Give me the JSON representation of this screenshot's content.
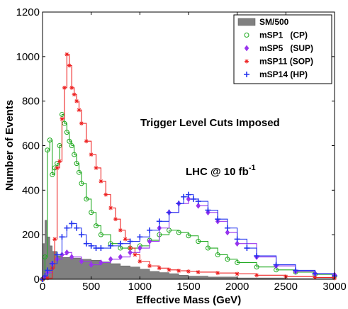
{
  "chart_data": {
    "type": "line",
    "title": "",
    "xlabel": "Effective Mass (GeV)",
    "ylabel": "Number of Events",
    "xlim": [
      0,
      3000
    ],
    "ylim": [
      0,
      1200
    ],
    "xticks": [
      0,
      500,
      1000,
      1500,
      2000,
      2500,
      3000
    ],
    "yticks": [
      0,
      200,
      400,
      600,
      800,
      1000,
      1200
    ],
    "legend_position": "top-right",
    "annotations": [
      "Trigger Level Cuts Imposed",
      "LHC @ 10 fb"
    ],
    "annotation_superscript": "-1",
    "series": [
      {
        "name": "SM/500",
        "style": "filled-histogram",
        "color": "#808080",
        "x": [
          0,
          25,
          50,
          75,
          100,
          150,
          200,
          300,
          400,
          500,
          600,
          700,
          800,
          900,
          1000,
          1100,
          1200,
          1300,
          1400,
          1500,
          1700,
          2000,
          2500,
          3000
        ],
        "values": [
          160,
          265,
          190,
          150,
          125,
          105,
          98,
          95,
          90,
          85,
          78,
          70,
          60,
          55,
          45,
          35,
          30,
          25,
          18,
          14,
          10,
          6,
          3,
          1
        ]
      },
      {
        "name": "mSP1   (CP)",
        "style": "line-markers",
        "marker": "circle",
        "color": "#22aa22",
        "x": [
          0,
          25,
          50,
          75,
          100,
          125,
          150,
          175,
          200,
          225,
          250,
          275,
          300,
          325,
          350,
          375,
          400,
          450,
          500,
          550,
          600,
          700,
          800,
          900,
          1000,
          1100,
          1200,
          1300,
          1400,
          1500,
          1600,
          1700,
          1800,
          1900,
          2000,
          2200,
          2400,
          2600,
          2800,
          3000
        ],
        "values": [
          0,
          100,
          580,
          625,
          470,
          500,
          520,
          600,
          740,
          700,
          660,
          620,
          600,
          560,
          520,
          480,
          430,
          360,
          300,
          240,
          200,
          160,
          140,
          140,
          150,
          175,
          200,
          220,
          210,
          195,
          170,
          140,
          110,
          90,
          75,
          55,
          42,
          32,
          22,
          15
        ]
      },
      {
        "name": "mSP5   (SUP)",
        "style": "line-markers",
        "marker": "diamond",
        "color": "#9933ee",
        "x": [
          0,
          25,
          50,
          100,
          150,
          200,
          250,
          300,
          400,
          500,
          600,
          700,
          800,
          900,
          1000,
          1100,
          1200,
          1300,
          1400,
          1500,
          1600,
          1700,
          1800,
          1900,
          2000,
          2200,
          2400,
          2600,
          2800,
          3000
        ],
        "values": [
          0,
          10,
          30,
          70,
          90,
          110,
          120,
          100,
          80,
          65,
          75,
          90,
          100,
          120,
          140,
          170,
          230,
          300,
          340,
          360,
          330,
          300,
          260,
          210,
          160,
          100,
          60,
          35,
          25,
          20
        ]
      },
      {
        "name": "mSP11 (SOP)",
        "style": "line-markers",
        "marker": "star",
        "color": "#ee2222",
        "x": [
          0,
          50,
          100,
          125,
          150,
          175,
          200,
          225,
          250,
          275,
          300,
          325,
          350,
          375,
          400,
          450,
          500,
          550,
          600,
          650,
          700,
          750,
          800,
          850,
          900,
          950,
          1000,
          1100,
          1200,
          1300,
          1400,
          1500,
          1600,
          1800,
          2000,
          2200,
          2500,
          2800,
          3000
        ],
        "values": [
          0,
          5,
          50,
          180,
          500,
          530,
          720,
          860,
          1010,
          960,
          860,
          830,
          800,
          760,
          700,
          620,
          560,
          500,
          440,
          380,
          320,
          270,
          220,
          180,
          140,
          110,
          80,
          60,
          50,
          42,
          38,
          35,
          32,
          28,
          24,
          18,
          12,
          8,
          5
        ]
      },
      {
        "name": "mSP14 (HP)",
        "style": "line-markers",
        "marker": "plus",
        "color": "#2233ee",
        "x": [
          0,
          25,
          50,
          100,
          150,
          200,
          250,
          300,
          350,
          400,
          450,
          500,
          550,
          600,
          700,
          800,
          900,
          1000,
          1100,
          1200,
          1300,
          1400,
          1450,
          1500,
          1550,
          1600,
          1700,
          1800,
          1900,
          2000,
          2100,
          2200,
          2400,
          2600,
          2800,
          3000
        ],
        "values": [
          0,
          15,
          40,
          70,
          110,
          190,
          230,
          250,
          230,
          200,
          160,
          150,
          140,
          140,
          150,
          160,
          170,
          190,
          220,
          260,
          300,
          340,
          370,
          380,
          360,
          350,
          310,
          270,
          230,
          180,
          140,
          105,
          65,
          40,
          25,
          15
        ]
      }
    ]
  }
}
